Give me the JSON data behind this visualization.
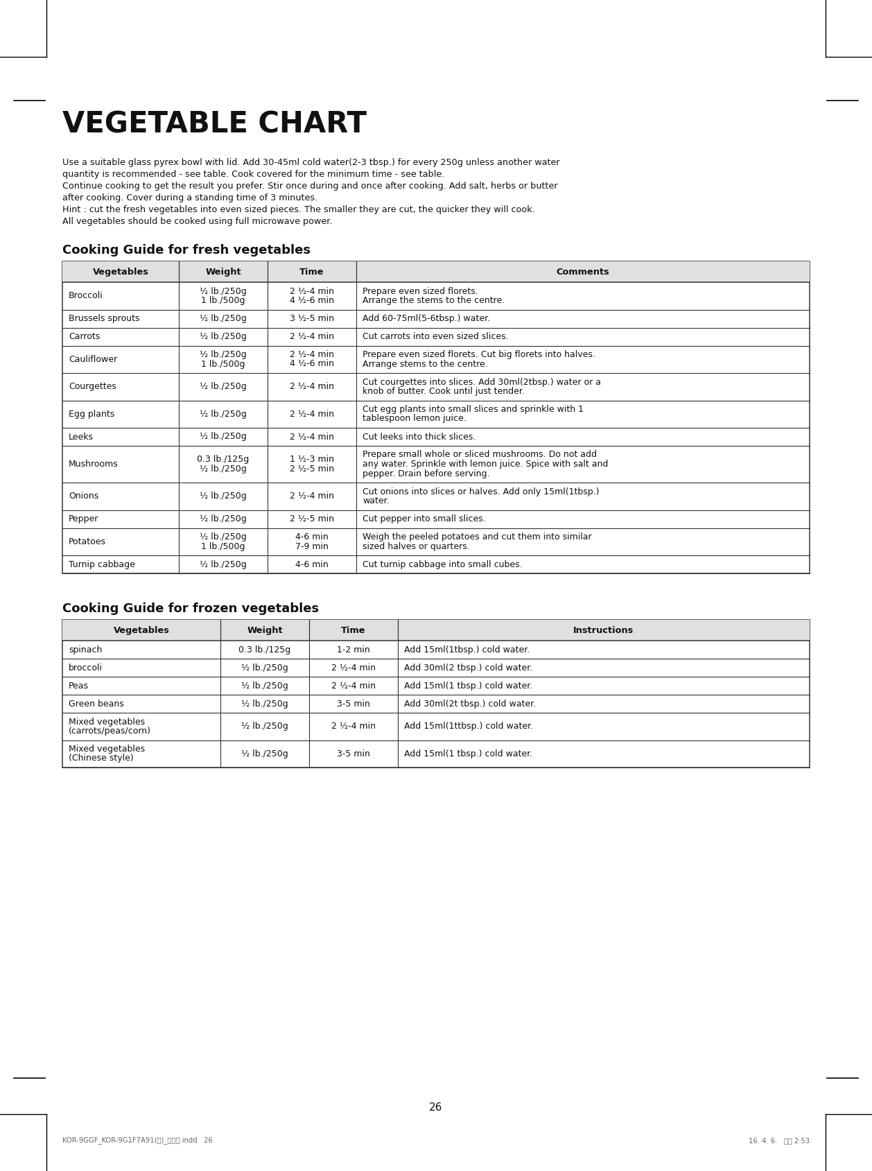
{
  "title": "VEGETABLE CHART",
  "page_number": "26",
  "intro_text": "Use a suitable glass pyrex bowl with lid. Add 30-45ml cold water(2-3 tbsp.) for every 250g unless another water\nquantity is recommended - see table. Cook covered for the minimum time - see table.\nContinue cooking to get the result you prefer. Stir once during and once after cooking. Add salt, herbs or butter\nafter cooking. Cover during a standing time of 3 minutes.\nHint : cut the fresh vegetables into even sized pieces. The smaller they are cut, the quicker they will cook.\nAll vegetables should be cooked using full microwave power.",
  "fresh_title": "Cooking Guide for fresh vegetables",
  "frozen_title": "Cooking Guide for frozen vegetables",
  "fresh_headers": [
    "Vegetables",
    "Weight",
    "Time",
    "Comments"
  ],
  "fresh_rows": [
    [
      "Broccoli",
      "½ lb./250g\n1 lb./500g",
      "2 ½-4 min\n4 ½-6 min",
      "Prepare even sized florets.\nArrange the stems to the centre."
    ],
    [
      "Brussels sprouts",
      "½ lb./250g",
      "3 ½-5 min",
      "Add 60-75ml(5-6tbsp.) water."
    ],
    [
      "Carrots",
      "½ lb./250g",
      "2 ½-4 min",
      "Cut carrots into even sized slices."
    ],
    [
      "Cauliflower",
      "½ lb./250g\n1 lb./500g",
      "2 ½-4 min\n4 ½-6 min",
      "Prepare even sized florets. Cut big florets into halves.\nArrange stems to the centre."
    ],
    [
      "Courgettes",
      "½ lb./250g",
      "2 ½-4 min",
      "Cut courgettes into slices. Add 30ml(2tbsp.) water or a\nknob of butter. Cook until just tender."
    ],
    [
      "Egg plants",
      "½ lb./250g",
      "2 ½-4 min",
      "Cut egg plants into small slices and sprinkle with 1\ntablespoon lemon juice."
    ],
    [
      "Leeks",
      "½ lb./250g",
      "2 ½-4 min",
      "Cut leeks into thick slices."
    ],
    [
      "Mushrooms",
      "0.3 lb./125g\n½ lb./250g",
      "1 ½-3 min\n2 ½-5 min",
      "Prepare small whole or sliced mushrooms. Do not add\nany water. Sprinkle with lemon juice. Spice with salt and\npepper. Drain before serving."
    ],
    [
      "Onions",
      "½ lb./250g",
      "2 ½-4 min",
      "Cut onions into slices or halves. Add only 15ml(1tbsp.)\nwater."
    ],
    [
      "Pepper",
      "½ lb./250g",
      "2 ½-5 min",
      "Cut pepper into small slices."
    ],
    [
      "Potatoes",
      "½ lb./250g\n1 lb./500g",
      "4-6 min\n7-9 min",
      "Weigh the peeled potatoes and cut them into similar\nsized halves or quarters."
    ],
    [
      "Turnip cabbage",
      "½ lb./250g",
      "4-6 min",
      "Cut turnip cabbage into small cubes."
    ]
  ],
  "frozen_headers": [
    "Vegetables",
    "Weight",
    "Time",
    "Instructions"
  ],
  "frozen_rows": [
    [
      "spinach",
      "0.3 lb./125g",
      "1-2 min",
      "Add 15ml(1tbsp.) cold water."
    ],
    [
      "broccoli",
      "½ lb./250g",
      "2 ½-4 min",
      "Add 30ml(2 tbsp.) cold water."
    ],
    [
      "Peas",
      "½ lb./250g",
      "2 ½-4 min",
      "Add 15ml(1 tbsp.) cold water."
    ],
    [
      "Green beans",
      "½ lb./250g",
      "3-5 min",
      "Add 30ml(2t tbsp.) cold water."
    ],
    [
      "Mixed vegetables\n(carrots/peas/corn)",
      "½ lb./250g",
      "2 ½-4 min",
      "Add 15ml(1ttbsp.) cold water."
    ],
    [
      "Mixed vegetables\n(Chinese style)",
      "½ lb./250g",
      "3-5 min",
      "Add 15ml(1 tbsp.) cold water."
    ]
  ],
  "footer_left": "KOR-9GGF_KOR-9G1F7A91(영)_규격용.indd   26",
  "footer_right": "16. 4. 6.   오후 2:53",
  "bg_color": "#ffffff",
  "header_bg": "#e0e0e0",
  "border_color": "#333333",
  "text_color": "#111111"
}
